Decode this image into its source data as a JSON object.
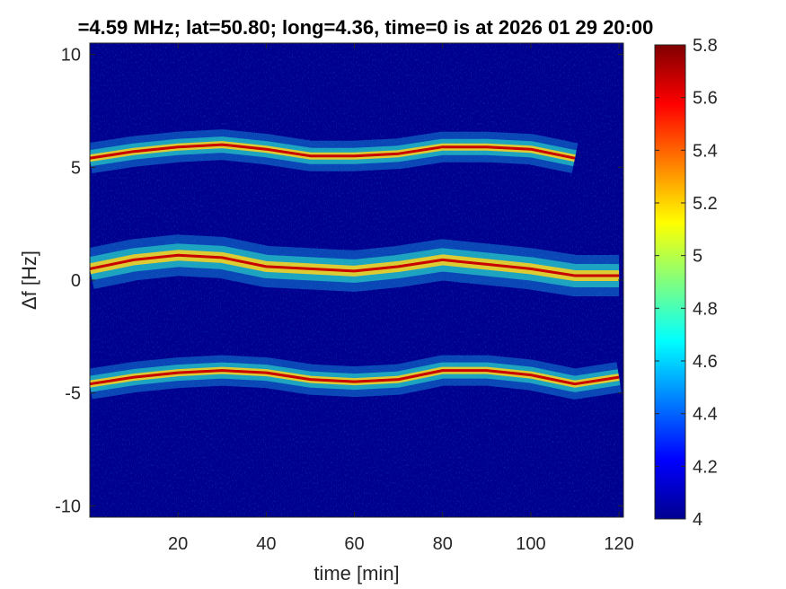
{
  "chart_data": {
    "type": "heatmap",
    "title": "=4.59 MHz;  lat=50.80; long=4.36, time=0 is at 2026 01 29 20:00",
    "xlabel": "time [min]",
    "ylabel": "Δf [Hz]",
    "xlim": [
      0,
      121
    ],
    "ylim": [
      -10.5,
      10.5
    ],
    "x_ticks": [
      20,
      40,
      60,
      80,
      100,
      120
    ],
    "y_ticks": [
      -10,
      -5,
      0,
      5,
      10
    ],
    "x_tick_labels": [
      "20",
      "40",
      "60",
      "80",
      "100",
      "120"
    ],
    "y_tick_labels": [
      "-10",
      "-5",
      "0",
      "5",
      "10"
    ],
    "colorbar": {
      "range": [
        4,
        5.8
      ],
      "ticks": [
        4,
        4.2,
        4.4,
        4.6,
        4.8,
        5,
        5.2,
        5.4,
        5.6,
        5.8
      ],
      "tick_labels": [
        "4",
        "4.2",
        "4.4",
        "4.6",
        "4.8",
        "5",
        "5.2",
        "5.4",
        "5.6",
        "5.8"
      ],
      "colormap": "jet"
    },
    "background_color": "#00008f",
    "series": [
      {
        "x": [
          0,
          10,
          20,
          30,
          40,
          50,
          60,
          70,
          80,
          90,
          100,
          110
        ],
        "y": [
          5.4,
          5.7,
          5.9,
          6.0,
          5.8,
          5.5,
          5.5,
          5.6,
          5.9,
          5.9,
          5.8,
          5.4
        ]
      },
      {
        "x": [
          0,
          10,
          20,
          30,
          40,
          50,
          60,
          70,
          80,
          90,
          100,
          110,
          120
        ],
        "y": [
          0.5,
          0.9,
          1.1,
          1.0,
          0.6,
          0.5,
          0.4,
          0.6,
          0.9,
          0.7,
          0.5,
          0.2,
          0.2
        ]
      },
      {
        "x": [
          0,
          10,
          20,
          30,
          40,
          50,
          60,
          70,
          80,
          90,
          100,
          110,
          120
        ],
        "y": [
          -4.6,
          -4.3,
          -4.1,
          -4.0,
          -4.1,
          -4.4,
          -4.5,
          -4.4,
          -4.0,
          -4.0,
          -4.2,
          -4.6,
          -4.3
        ]
      }
    ]
  }
}
